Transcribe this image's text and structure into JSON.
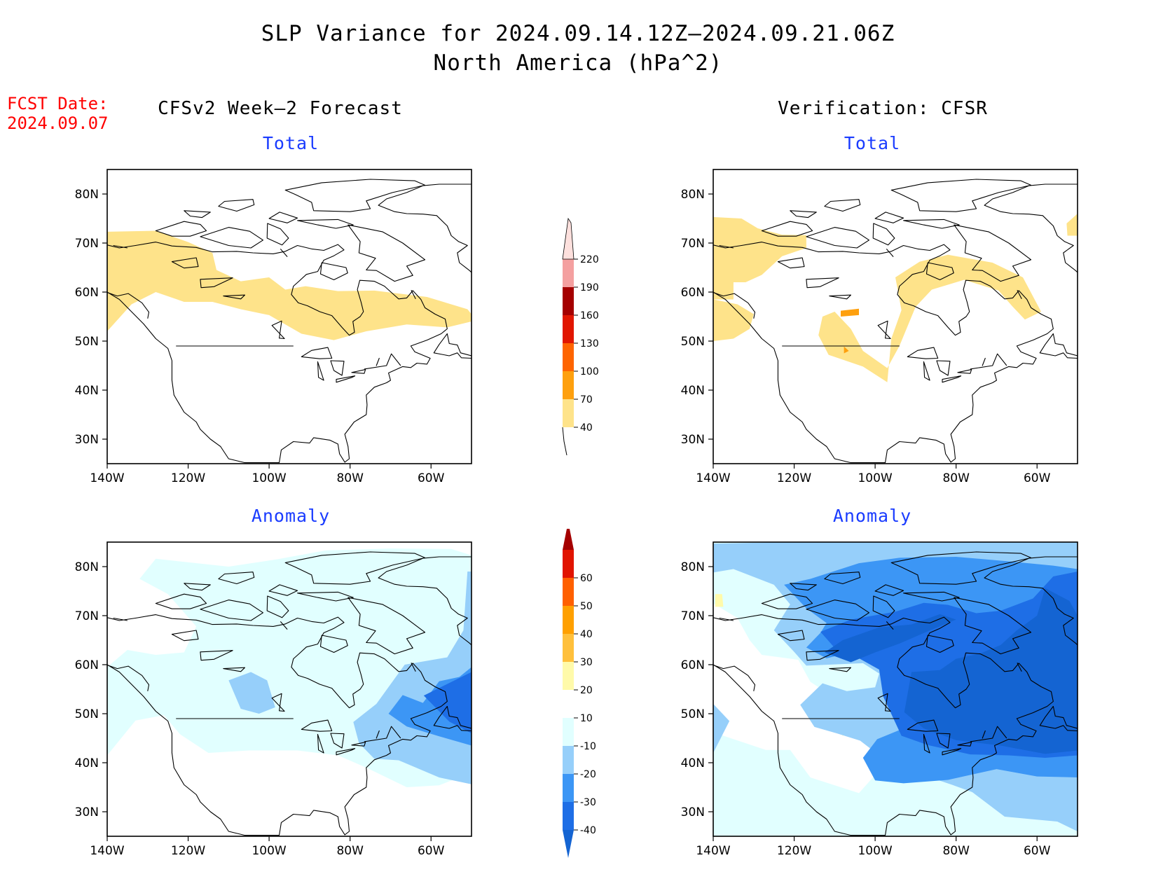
{
  "title_line1": "SLP Variance for 2024.09.14.12Z–2024.09.21.06Z",
  "title_line2": "North America (hPa^2)",
  "fcst_label": "FCST Date:",
  "fcst_date": "2024.09.07",
  "left_heading": "CFSv2 Week–2 Forecast",
  "right_heading": "Verification: CFSR",
  "panels": {
    "fcst_total": "Total",
    "fcst_anomaly": "Anomaly",
    "ver_total": "Total",
    "ver_anomaly": "Anomaly"
  },
  "axes": {
    "lat_labels": [
      "80N",
      "70N",
      "60N",
      "50N",
      "40N",
      "30N"
    ],
    "lat_values": [
      80,
      70,
      60,
      50,
      40,
      30
    ],
    "lon_labels": [
      "140W",
      "120W",
      "100W",
      "80W",
      "60W"
    ],
    "lon_values": [
      -140,
      -120,
      -100,
      -80,
      -60
    ],
    "lat_range": [
      25,
      85
    ],
    "lon_range": [
      -140,
      -50
    ]
  },
  "total_colorbar": {
    "levels": [
      "40",
      "70",
      "100",
      "130",
      "160",
      "190",
      "220"
    ],
    "colors": [
      "#fee38a",
      "#fea00e",
      "#fe6400",
      "#e11600",
      "#a50000",
      "#f4a0a0",
      "#fde0dd"
    ]
  },
  "anomaly_colorbar": {
    "levels": [
      "-40",
      "-30",
      "-20",
      "-10",
      "10",
      "20",
      "30",
      "40",
      "50",
      "60"
    ],
    "colors": [
      "#1464d2",
      "#1e6ee6",
      "#3c96f5",
      "#96cffa",
      "#e1ffff",
      "#ffffff",
      "#fffaaa",
      "#ffc03c",
      "#ffa000",
      "#ff6000",
      "#e11400",
      "#a50000"
    ]
  }
}
